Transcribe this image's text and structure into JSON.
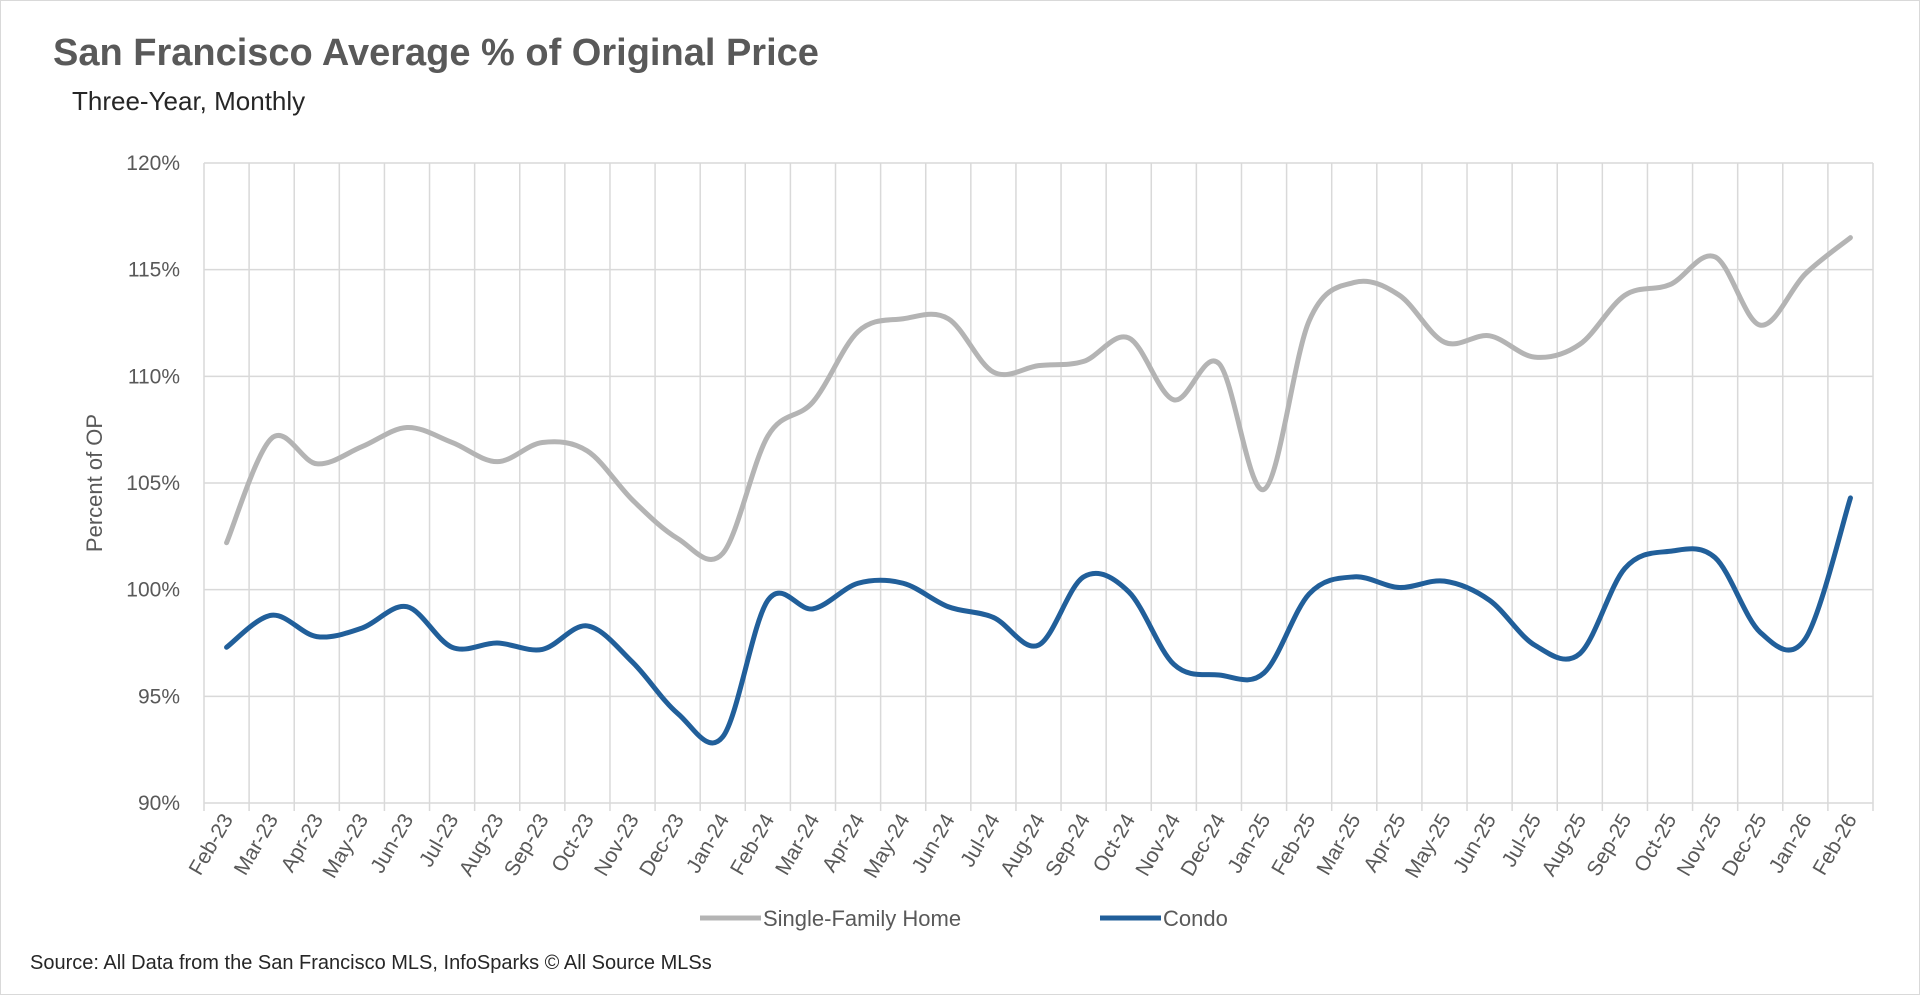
{
  "chart_data": {
    "type": "line",
    "title": "San Francisco Average % of Original Price",
    "subtitle": "Three-Year, Monthly",
    "xlabel": "",
    "ylabel": "Percent of OP",
    "ylim": [
      90,
      120
    ],
    "yticks": [
      "90%",
      "95%",
      "100%",
      "105%",
      "110%",
      "115%",
      "120%"
    ],
    "ytick_values": [
      90,
      95,
      100,
      105,
      110,
      115,
      120
    ],
    "grid": true,
    "legend_position": "bottom",
    "categories": [
      "Feb-23",
      "Mar-23",
      "Apr-23",
      "May-23",
      "Jun-23",
      "Jul-23",
      "Aug-23",
      "Sep-23",
      "Oct-23",
      "Nov-23",
      "Dec-23",
      "Jan-24",
      "Feb-24",
      "Mar-24",
      "Apr-24",
      "May-24",
      "Jun-24",
      "Jul-24",
      "Aug-24",
      "Sep-24",
      "Oct-24",
      "Nov-24",
      "Dec-24",
      "Jan-25",
      "Feb-25",
      "Mar-25",
      "Apr-25",
      "May-25",
      "Jun-25",
      "Jul-25",
      "Aug-25",
      "Sep-25",
      "Oct-25",
      "Nov-25",
      "Dec-25",
      "Jan-26",
      "Feb-26"
    ],
    "series": [
      {
        "name": "Single-Family Home",
        "color": "#b4b4b4",
        "values": [
          102.2,
          107.1,
          105.9,
          106.7,
          107.6,
          106.9,
          106.0,
          106.9,
          106.5,
          104.2,
          102.4,
          101.7,
          107.2,
          108.8,
          112.1,
          112.7,
          112.7,
          110.2,
          110.5,
          110.7,
          111.8,
          108.9,
          110.6,
          104.7,
          112.6,
          114.4,
          113.8,
          111.6,
          111.9,
          110.9,
          111.5,
          113.8,
          114.3,
          115.6,
          112.4,
          114.8,
          116.5
        ]
      },
      {
        "name": "Condo",
        "color": "#215f9a",
        "values": [
          97.3,
          98.8,
          97.8,
          98.2,
          99.2,
          97.3,
          97.5,
          97.2,
          98.3,
          96.6,
          94.2,
          93.1,
          99.5,
          99.1,
          100.3,
          100.3,
          99.2,
          98.7,
          97.4,
          100.6,
          99.9,
          96.5,
          96.0,
          96.1,
          99.8,
          100.6,
          100.1,
          100.4,
          99.5,
          97.4,
          97.0,
          101.0,
          101.8,
          101.5,
          98.0,
          97.7,
          104.3
        ]
      }
    ]
  },
  "footer": {
    "source": "Source: All Data from the San Francisco MLS, InfoSparks © All Source MLSs"
  }
}
